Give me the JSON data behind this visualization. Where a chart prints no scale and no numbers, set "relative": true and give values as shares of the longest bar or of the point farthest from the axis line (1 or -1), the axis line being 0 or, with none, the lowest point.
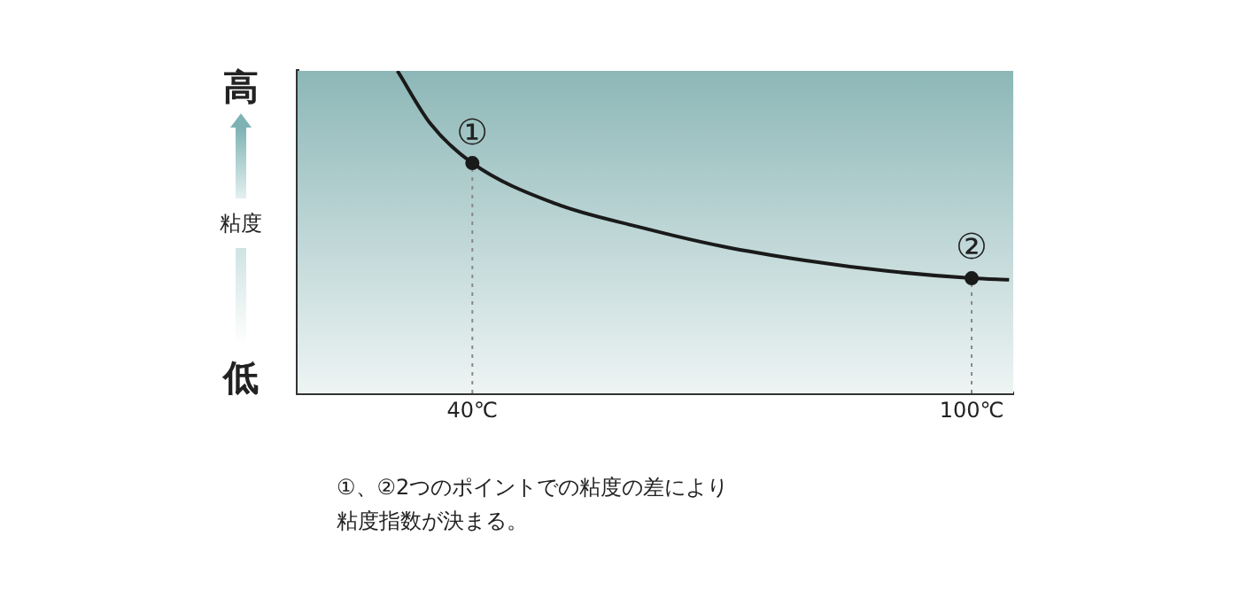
{
  "chart_data": {
    "type": "line",
    "ylabel": "粘度",
    "relative": true,
    "xlim": [
      19,
      105
    ],
    "xticks": [
      {
        "value": 40,
        "label": "40℃"
      },
      {
        "value": 100,
        "label": "100℃"
      }
    ],
    "series": [
      {
        "color": "#1a1a1a",
        "marker": "none",
        "x": [
          31,
          35,
          40,
          50,
          60,
          70,
          80,
          90,
          100,
          104.5
        ],
        "values": [
          1.0,
          0.835,
          0.714,
          0.588,
          0.516,
          0.456,
          0.412,
          0.379,
          0.357,
          0.352
        ]
      },
      {
        "type": "scatter",
        "color": "#1a1a1a",
        "marker": "circle",
        "x": [
          40,
          100
        ],
        "values": [
          0.714,
          0.357
        ]
      }
    ],
    "ref_lines": [
      {
        "axis": "x",
        "value": 40,
        "color": "#888888",
        "line_style": "dotted"
      },
      {
        "axis": "x",
        "value": 100,
        "color": "#888888",
        "line_style": "dotted"
      }
    ],
    "annotations": [
      "高",
      "低",
      {
        "text": "①",
        "x": 40,
        "y": 0.714
      },
      {
        "text": "②",
        "x": 100,
        "y": 0.357
      },
      "①、②2つのポイントでの粘度の差により粘度指数が決まる。"
    ],
    "grid": false,
    "legend": false
  }
}
